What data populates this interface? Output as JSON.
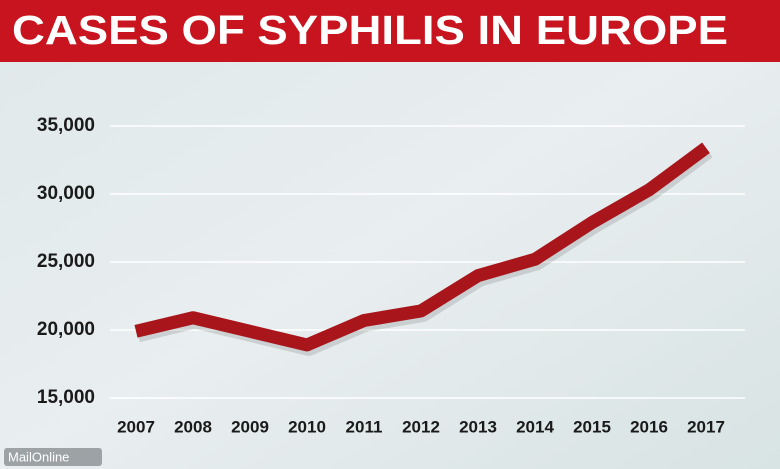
{
  "chart_data": {
    "type": "line",
    "title": "CASES OF SYPHILIS IN EUROPE",
    "source": "MailOnline",
    "categories": [
      "2007",
      "2008",
      "2009",
      "2010",
      "2011",
      "2012",
      "2013",
      "2014",
      "2015",
      "2016",
      "2017"
    ],
    "values": [
      19900,
      20900,
      19900,
      18900,
      20700,
      21400,
      24000,
      25200,
      27900,
      30300,
      33400
    ],
    "color": "#a8161c",
    "ylim": [
      15000,
      35000
    ],
    "yticks": [
      {
        "value": 15000,
        "label": "15,000"
      },
      {
        "value": 20000,
        "label": "20,000"
      },
      {
        "value": 25000,
        "label": "25,000"
      },
      {
        "value": 30000,
        "label": "30,000"
      },
      {
        "value": 35000,
        "label": "35,000"
      }
    ],
    "grid": true
  }
}
